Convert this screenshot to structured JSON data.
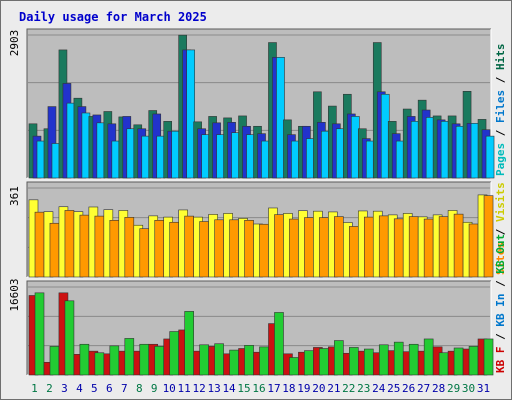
{
  "chart_data": {
    "type": "bar",
    "title": "Daily usage for March 2025",
    "title_color": "#0000cc",
    "x": {
      "categories": [
        "1",
        "2",
        "3",
        "4",
        "5",
        "6",
        "7",
        "8",
        "9",
        "10",
        "11",
        "12",
        "13",
        "14",
        "15",
        "16",
        "17",
        "18",
        "19",
        "20",
        "21",
        "22",
        "23",
        "24",
        "25",
        "26",
        "27",
        "28",
        "29",
        "30",
        "31"
      ],
      "weekend_days": [
        "1",
        "2",
        "8",
        "9",
        "15",
        "16",
        "22",
        "23",
        "29",
        "30"
      ],
      "weekday_color": "#0000aa",
      "weekend_color": "#007744"
    },
    "panels": [
      {
        "name": "pages-files-hits",
        "ymax_label": "2903",
        "ymax": 2903,
        "legend": [
          {
            "text": "Pages",
            "color": "#00bbbb"
          },
          {
            "text": " / ",
            "color": "#000000"
          },
          {
            "text": "Files",
            "color": "#0077cc"
          },
          {
            "text": " / ",
            "color": "#000000"
          },
          {
            "text": "Hits",
            "color": "#006644"
          }
        ],
        "series": [
          {
            "name": "Hits",
            "color": "#1a7a5e",
            "values": [
              1100,
              1000,
              2600,
              1620,
              1250,
              1350,
              1240,
              1080,
              1370,
              1150,
              2900,
              1140,
              1250,
              1220,
              1260,
              1050,
              2750,
              1180,
              1050,
              1750,
              1460,
              1700,
              1000,
              2750,
              1150,
              1400,
              1580,
              1260,
              1260,
              1760,
              1190
            ]
          },
          {
            "name": "Files",
            "color": "#2233cc",
            "values": [
              850,
              1450,
              1920,
              1450,
              1280,
              1100,
              1250,
              1000,
              1300,
              950,
              2600,
              1000,
              1120,
              1130,
              1050,
              900,
              2450,
              880,
              1050,
              1130,
              1100,
              1300,
              800,
              1750,
              900,
              1250,
              1380,
              1180,
              1100,
              1110,
              980
            ]
          },
          {
            "name": "Pages",
            "color": "#00ccff",
            "values": [
              750,
              700,
              1520,
              1320,
              1120,
              750,
              1000,
              850,
              850,
              950,
              2600,
              880,
              880,
              920,
              880,
              750,
              2450,
              750,
              800,
              950,
              1000,
              1250,
              750,
              1700,
              750,
              1150,
              1230,
              1150,
              1050,
              1110,
              850
            ]
          }
        ]
      },
      {
        "name": "visits-sites",
        "ymax_label": "361",
        "ymax": 361,
        "legend": [
          {
            "text": "Sites",
            "color": "#ff8800"
          },
          {
            "text": " / ",
            "color": "#000000"
          },
          {
            "text": "Visits",
            "color": "#cccc00"
          }
        ],
        "series": [
          {
            "name": "Visits",
            "color": "#ffff33",
            "values": [
              313,
              265,
              285,
              265,
              284,
              273,
              270,
              210,
              248,
              243,
              272,
              243,
              254,
              258,
              238,
              215,
              280,
              258,
              269,
              267,
              264,
              221,
              268,
              267,
              252,
              258,
              244,
              252,
              270,
              222,
              333
            ]
          },
          {
            "name": "Sites",
            "color": "#ff9900",
            "values": [
              263,
              218,
              270,
              251,
              247,
              230,
              242,
              196,
              230,
              222,
              247,
              225,
              232,
              232,
              230,
              214,
              253,
              235,
              241,
              241,
              245,
              205,
              243,
              248,
              236,
              245,
              235,
              245,
              255,
              215,
              330
            ]
          }
        ]
      },
      {
        "name": "kb-in-out",
        "ymax_label": "16603",
        "ymax": 16603,
        "legend": [
          {
            "text": "KB F",
            "color": "#cc0000"
          },
          {
            "text": " / ",
            "color": "#000000"
          },
          {
            "text": "KB In",
            "color": "#0077cc"
          },
          {
            "text": " / ",
            "color": "#000000"
          },
          {
            "text": "KB Out",
            "color": "#00aa33"
          }
        ],
        "series": [
          {
            "name": "KB F",
            "color": "#cc1111",
            "values": [
              15000,
              2400,
              15500,
              3900,
              4500,
              4000,
              4500,
              4500,
              5800,
              6800,
              8500,
              4500,
              5400,
              4000,
              5000,
              4300,
              9700,
              4000,
              4300,
              5200,
              5300,
              4100,
              4500,
              4200,
              4600,
              4400,
              4500,
              5300,
              4500,
              4900,
              6800
            ]
          },
          {
            "name": "KB Out",
            "color": "#22cc33",
            "values": [
              15500,
              5400,
              14000,
              5800,
              4200,
              5500,
              6900,
              5800,
              5400,
              8200,
              12000,
              5700,
              5900,
              4700,
              5600,
              5300,
              11800,
              3300,
              4600,
              5000,
              6500,
              5200,
              4900,
              5700,
              6200,
              5800,
              6800,
              4200,
              5100,
              5400,
              6800
            ]
          }
        ]
      }
    ]
  }
}
